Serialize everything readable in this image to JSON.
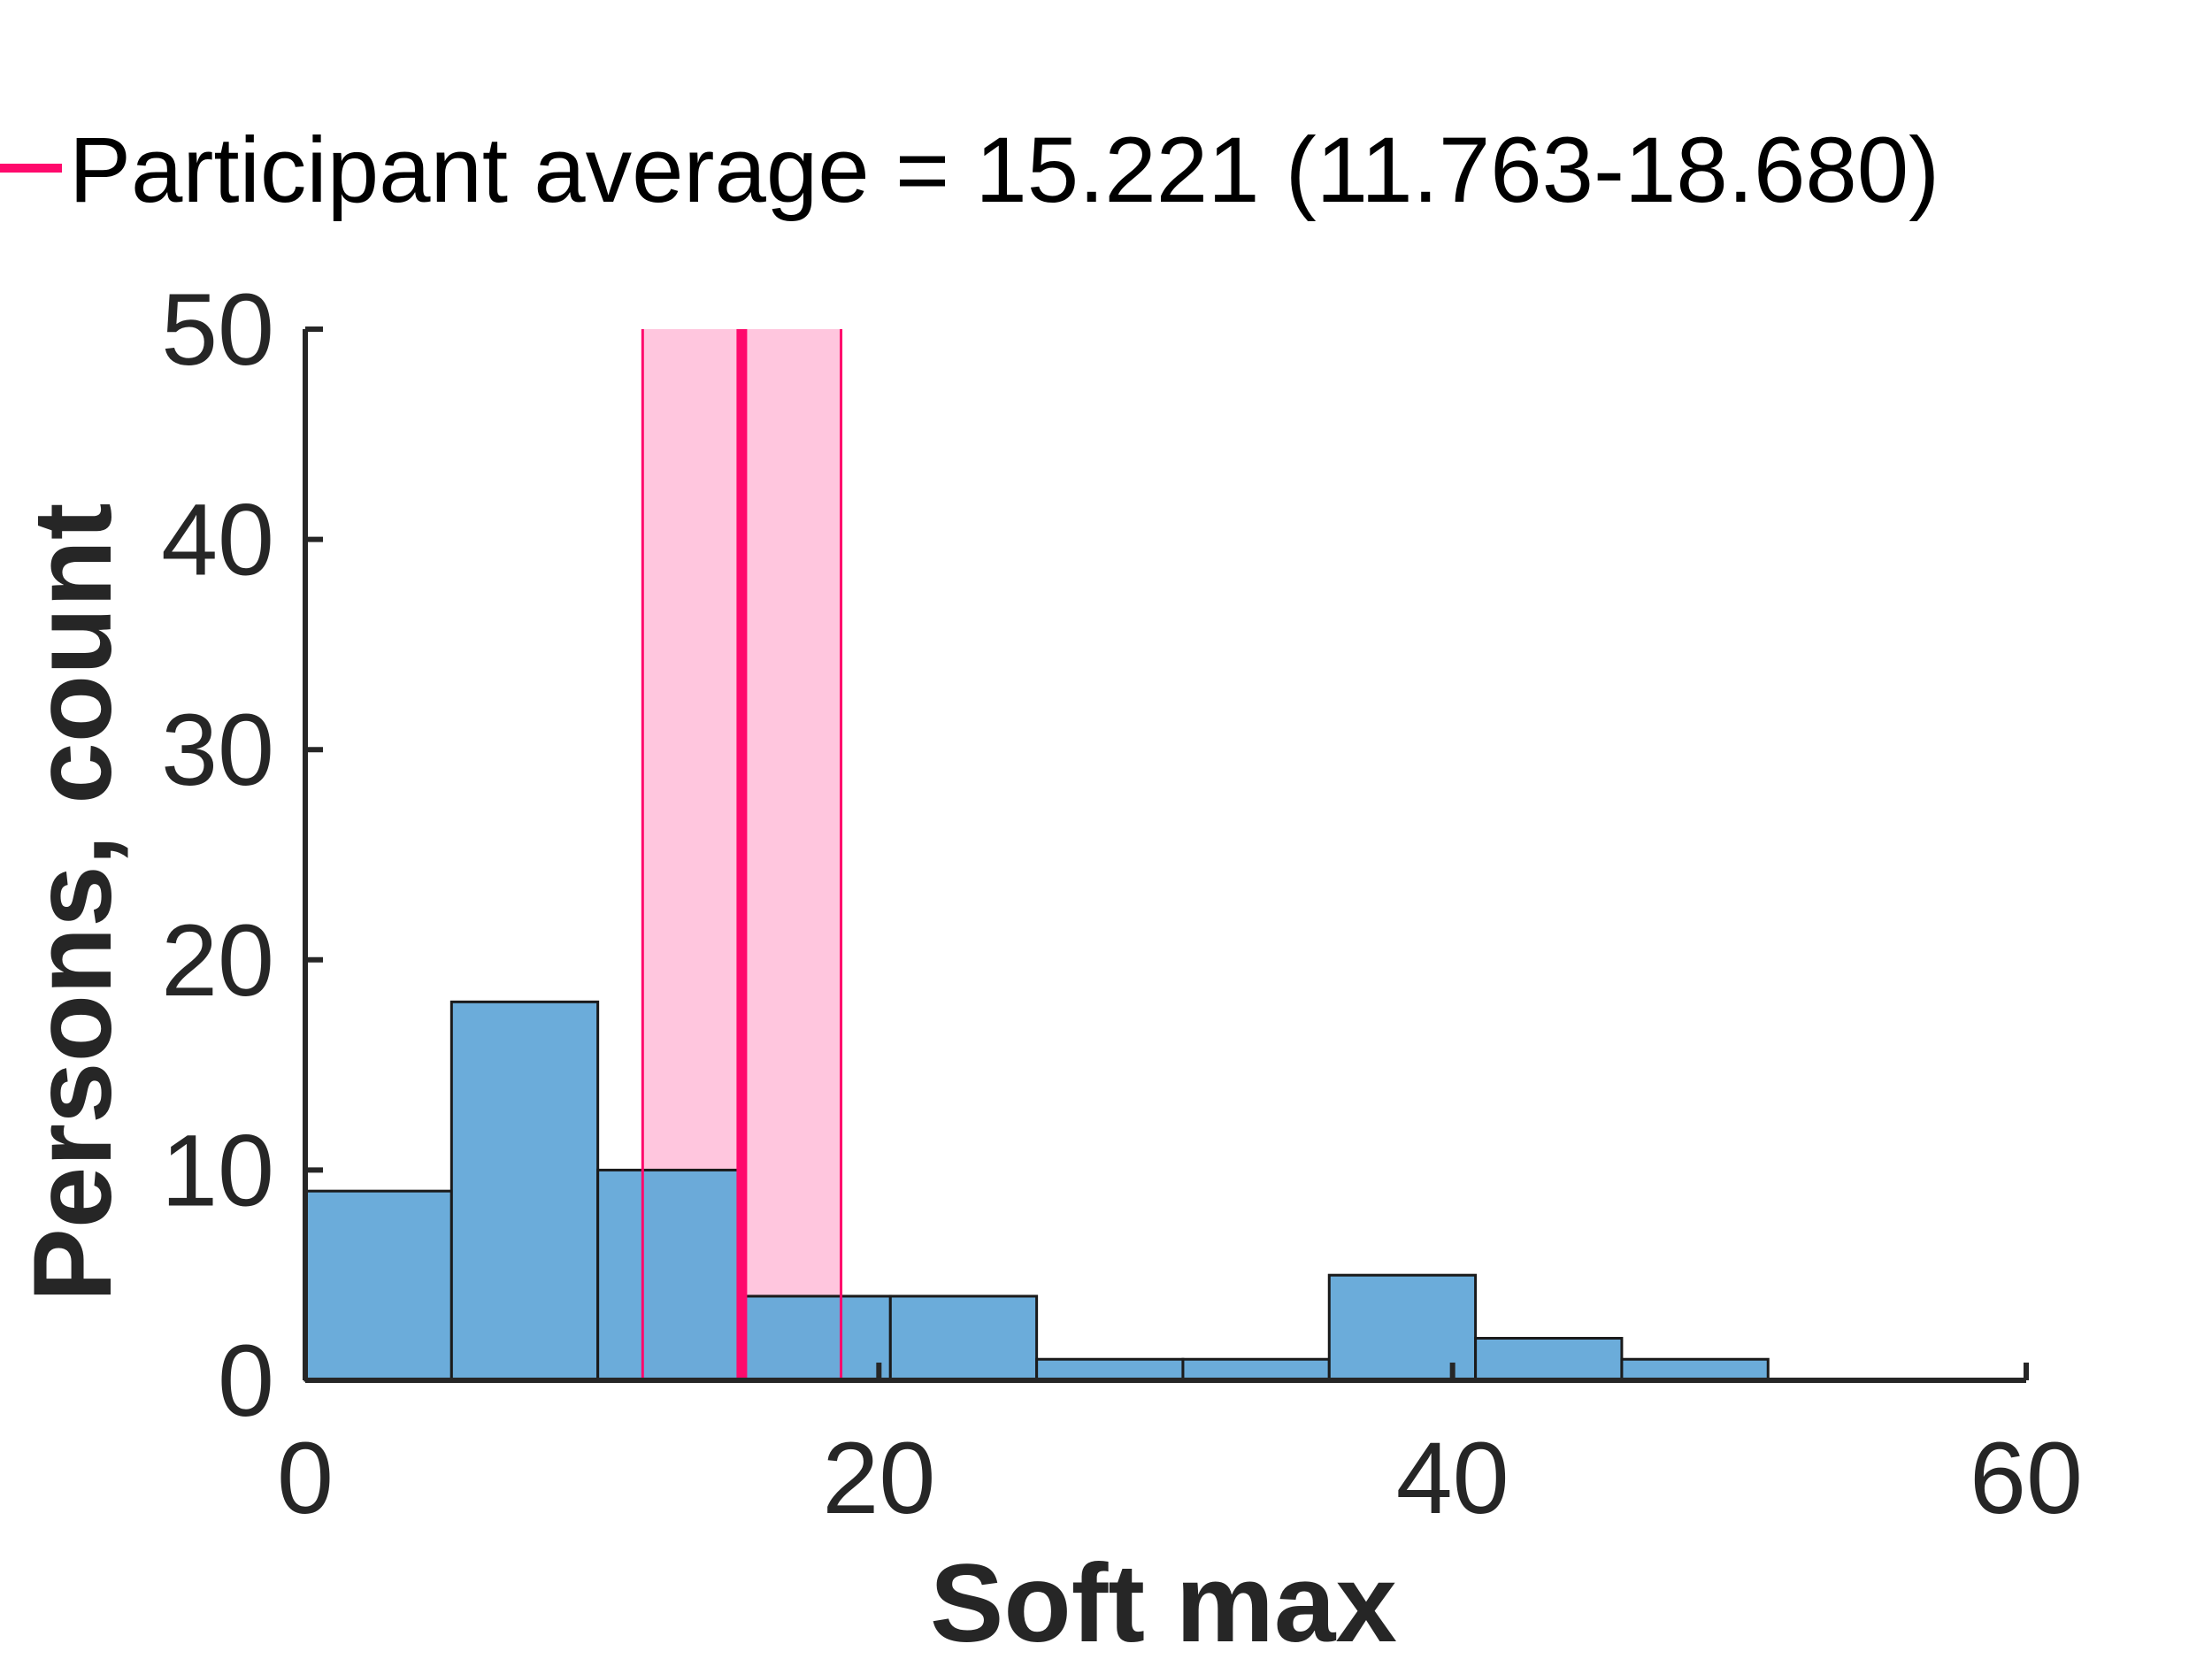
{
  "chart_data": {
    "type": "bar",
    "subtype": "histogram",
    "xlabel": "Soft max",
    "ylabel": "Persons, count",
    "xlim": [
      0,
      60
    ],
    "ylim": [
      0,
      50
    ],
    "xticks": [
      0,
      20,
      40,
      60
    ],
    "yticks": [
      0,
      10,
      20,
      30,
      40,
      50
    ],
    "bins": [
      {
        "x0": 0.0,
        "x1": 5.1,
        "count": 9
      },
      {
        "x0": 5.1,
        "x1": 10.2,
        "count": 18
      },
      {
        "x0": 10.2,
        "x1": 15.3,
        "count": 10
      },
      {
        "x0": 15.3,
        "x1": 20.4,
        "count": 4
      },
      {
        "x0": 20.4,
        "x1": 25.5,
        "count": 4
      },
      {
        "x0": 25.5,
        "x1": 30.6,
        "count": 1
      },
      {
        "x0": 30.6,
        "x1": 35.7,
        "count": 1
      },
      {
        "x0": 35.7,
        "x1": 40.8,
        "count": 5
      },
      {
        "x0": 40.8,
        "x1": 45.9,
        "count": 2
      },
      {
        "x0": 45.9,
        "x1": 51.0,
        "count": 1
      }
    ],
    "reference_line": {
      "label": "Participant average = 15.221 (11.763-18.680)",
      "value": 15.221,
      "ci": [
        11.763,
        18.68
      ]
    },
    "grid": false,
    "legend_position": "top"
  },
  "colors": {
    "bar_fill": "#65a9d8",
    "bar_stroke": "#1a1a1a",
    "mean_line": "#ff0a6c",
    "ci_fill": "#ffc6de",
    "axis": "#262626"
  }
}
